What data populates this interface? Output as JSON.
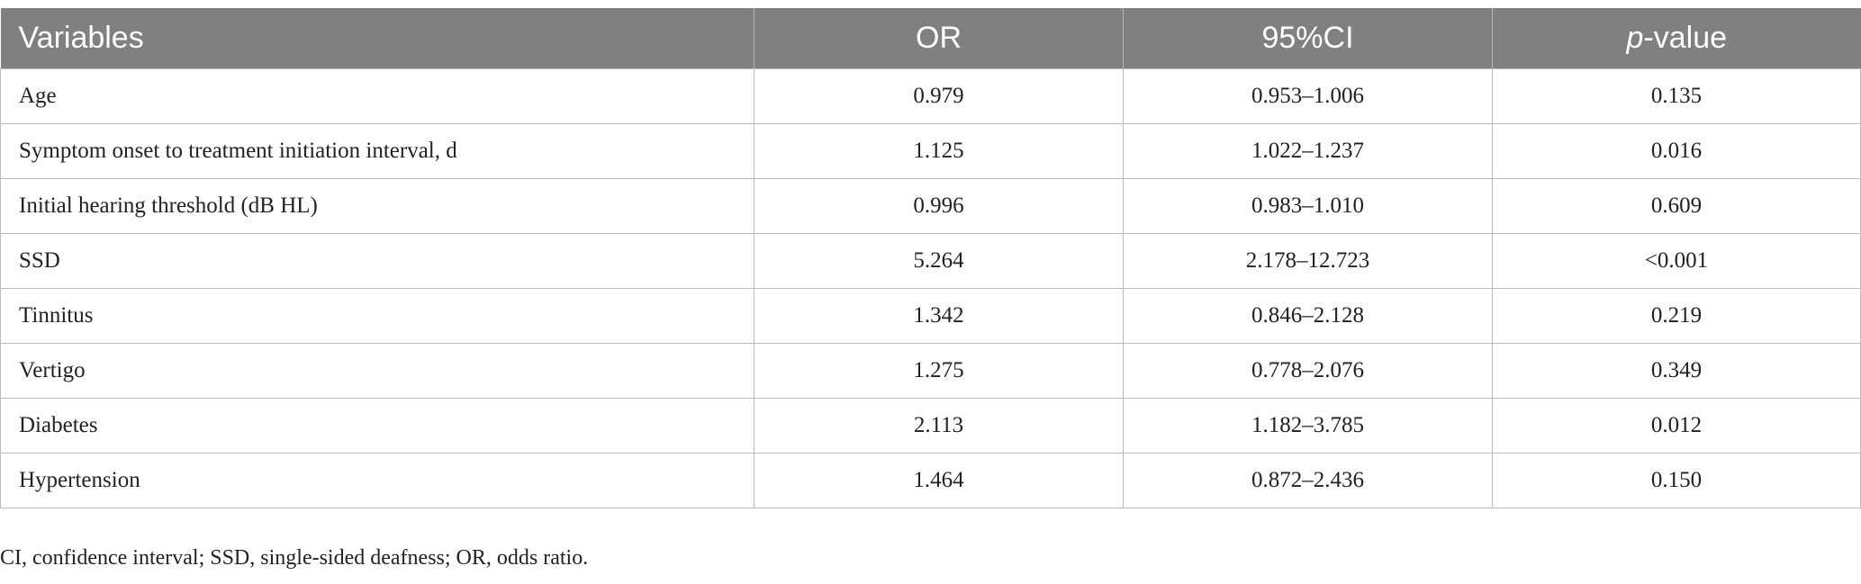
{
  "table": {
    "header": [
      "Variables",
      "OR",
      "95%CI",
      {
        "italic": "p",
        "rest": "-value"
      }
    ],
    "rows": [
      [
        "Age",
        "0.979",
        "0.953–1.006",
        "0.135"
      ],
      [
        "Symptom onset to treatment initiation interval, d",
        "1.125",
        "1.022–1.237",
        "0.016"
      ],
      [
        "Initial hearing threshold (dB HL)",
        "0.996",
        "0.983–1.010",
        "0.609"
      ],
      [
        "SSD",
        "5.264",
        "2.178–12.723",
        "<0.001"
      ],
      [
        "Tinnitus",
        "1.342",
        "0.846–2.128",
        "0.219"
      ],
      [
        "Vertigo",
        "1.275",
        "0.778–2.076",
        "0.349"
      ],
      [
        "Diabetes",
        "2.113",
        "1.182–3.785",
        "0.012"
      ],
      [
        "Hypertension",
        "1.464",
        "0.872–2.436",
        "0.150"
      ]
    ]
  },
  "footnote": "CI, confidence interval; SSD, single-sided deafness; OR, odds ratio."
}
